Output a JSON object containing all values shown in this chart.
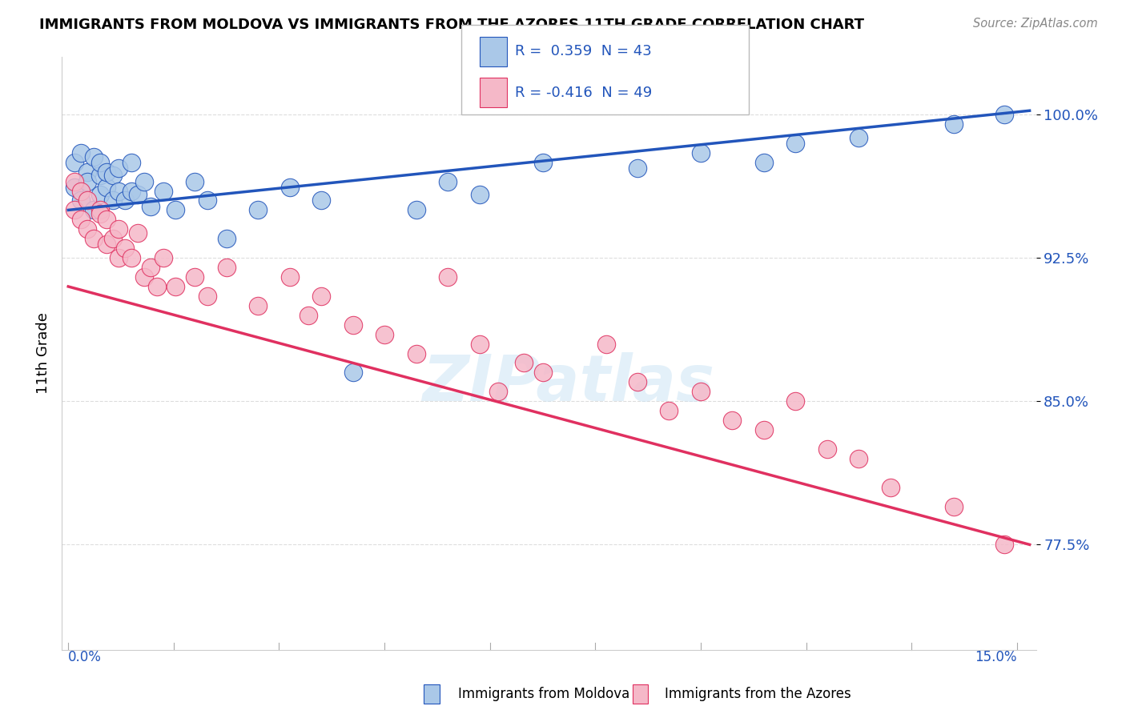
{
  "title": "IMMIGRANTS FROM MOLDOVA VS IMMIGRANTS FROM THE AZORES 11TH GRADE CORRELATION CHART",
  "source": "Source: ZipAtlas.com",
  "ylabel": "11th Grade",
  "watermark": "ZIPatlas",
  "legend_label1": "Immigrants from Moldova",
  "legend_label2": "Immigrants from the Azores",
  "r1": "0.359",
  "n1": "43",
  "r2": "-0.416",
  "n2": "49",
  "yticks": [
    77.5,
    85.0,
    92.5,
    100.0
  ],
  "ylim": [
    72.0,
    103.0
  ],
  "xlim": [
    -0.001,
    0.153
  ],
  "color_moldova": "#aac8e8",
  "color_azores": "#f5b8c8",
  "line_color_moldova": "#2255bb",
  "line_color_azores": "#e03060",
  "background_color": "#ffffff",
  "mol_line_y0": 95.0,
  "mol_line_y1": 100.2,
  "az_line_y0": 91.0,
  "az_line_y1": 77.5,
  "moldova_points": [
    [
      0.001,
      97.5
    ],
    [
      0.001,
      96.2
    ],
    [
      0.002,
      98.0
    ],
    [
      0.002,
      95.5
    ],
    [
      0.003,
      97.0
    ],
    [
      0.003,
      96.5
    ],
    [
      0.004,
      97.8
    ],
    [
      0.004,
      95.0
    ],
    [
      0.005,
      96.8
    ],
    [
      0.005,
      97.5
    ],
    [
      0.005,
      95.8
    ],
    [
      0.006,
      96.2
    ],
    [
      0.006,
      97.0
    ],
    [
      0.007,
      95.5
    ],
    [
      0.007,
      96.8
    ],
    [
      0.008,
      97.2
    ],
    [
      0.008,
      96.0
    ],
    [
      0.009,
      95.5
    ],
    [
      0.01,
      97.5
    ],
    [
      0.01,
      96.0
    ],
    [
      0.011,
      95.8
    ],
    [
      0.012,
      96.5
    ],
    [
      0.013,
      95.2
    ],
    [
      0.015,
      96.0
    ],
    [
      0.017,
      95.0
    ],
    [
      0.02,
      96.5
    ],
    [
      0.022,
      95.5
    ],
    [
      0.025,
      93.5
    ],
    [
      0.03,
      95.0
    ],
    [
      0.035,
      96.2
    ],
    [
      0.04,
      95.5
    ],
    [
      0.045,
      86.5
    ],
    [
      0.055,
      95.0
    ],
    [
      0.06,
      96.5
    ],
    [
      0.065,
      95.8
    ],
    [
      0.075,
      97.5
    ],
    [
      0.09,
      97.2
    ],
    [
      0.1,
      98.0
    ],
    [
      0.11,
      97.5
    ],
    [
      0.115,
      98.5
    ],
    [
      0.125,
      98.8
    ],
    [
      0.14,
      99.5
    ],
    [
      0.148,
      100.0
    ]
  ],
  "azores_points": [
    [
      0.001,
      96.5
    ],
    [
      0.001,
      95.0
    ],
    [
      0.002,
      94.5
    ],
    [
      0.002,
      96.0
    ],
    [
      0.003,
      95.5
    ],
    [
      0.003,
      94.0
    ],
    [
      0.004,
      93.5
    ],
    [
      0.005,
      95.0
    ],
    [
      0.005,
      94.8
    ],
    [
      0.006,
      93.2
    ],
    [
      0.006,
      94.5
    ],
    [
      0.007,
      93.5
    ],
    [
      0.008,
      92.5
    ],
    [
      0.008,
      94.0
    ],
    [
      0.009,
      93.0
    ],
    [
      0.01,
      92.5
    ],
    [
      0.011,
      93.8
    ],
    [
      0.012,
      91.5
    ],
    [
      0.013,
      92.0
    ],
    [
      0.014,
      91.0
    ],
    [
      0.015,
      92.5
    ],
    [
      0.017,
      91.0
    ],
    [
      0.02,
      91.5
    ],
    [
      0.022,
      90.5
    ],
    [
      0.025,
      92.0
    ],
    [
      0.03,
      90.0
    ],
    [
      0.035,
      91.5
    ],
    [
      0.038,
      89.5
    ],
    [
      0.04,
      90.5
    ],
    [
      0.045,
      89.0
    ],
    [
      0.05,
      88.5
    ],
    [
      0.055,
      87.5
    ],
    [
      0.06,
      91.5
    ],
    [
      0.065,
      88.0
    ],
    [
      0.068,
      85.5
    ],
    [
      0.072,
      87.0
    ],
    [
      0.075,
      86.5
    ],
    [
      0.085,
      88.0
    ],
    [
      0.09,
      86.0
    ],
    [
      0.095,
      84.5
    ],
    [
      0.1,
      85.5
    ],
    [
      0.105,
      84.0
    ],
    [
      0.11,
      83.5
    ],
    [
      0.115,
      85.0
    ],
    [
      0.12,
      82.5
    ],
    [
      0.125,
      82.0
    ],
    [
      0.13,
      80.5
    ],
    [
      0.14,
      79.5
    ],
    [
      0.148,
      77.5
    ]
  ]
}
